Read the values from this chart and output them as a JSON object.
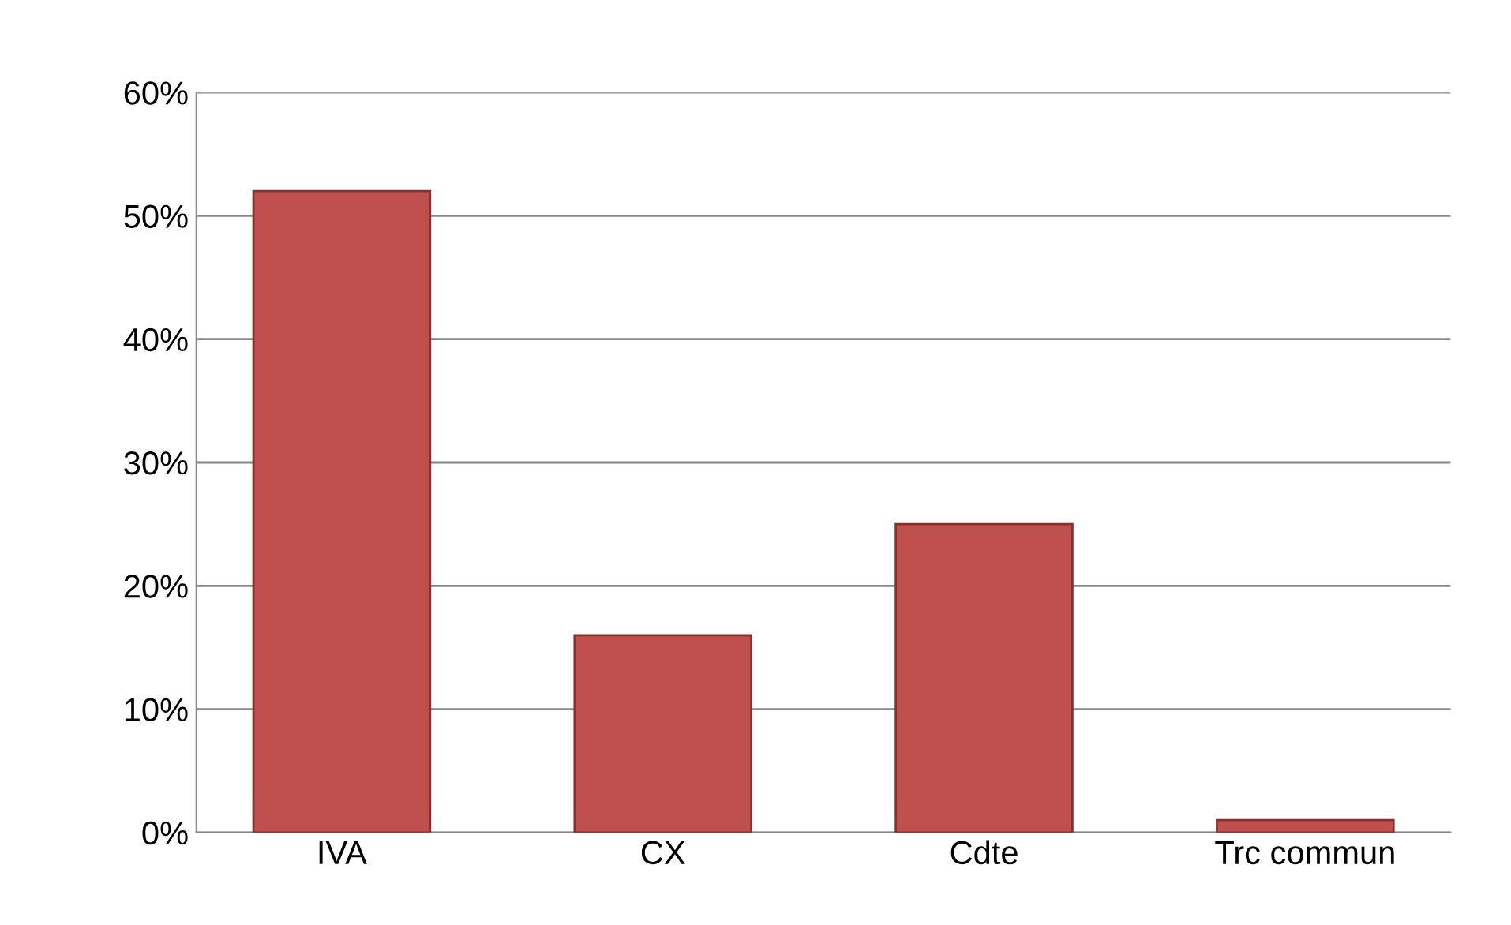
{
  "chart_data": {
    "type": "bar",
    "categories": [
      "IVA",
      "CX",
      "Cdte",
      "Trc commun"
    ],
    "values": [
      52,
      16,
      25,
      1
    ],
    "color": "#c0504d",
    "ylim": [
      0,
      60
    ],
    "yticks": [
      {
        "value": 0,
        "label": "0%"
      },
      {
        "value": 10,
        "label": "10%"
      },
      {
        "value": 20,
        "label": "20%"
      },
      {
        "value": 30,
        "label": "30%"
      },
      {
        "value": 40,
        "label": "40%"
      },
      {
        "value": 50,
        "label": "50%"
      },
      {
        "value": 60,
        "label": "60%"
      }
    ],
    "grid": "y",
    "legend": false
  }
}
